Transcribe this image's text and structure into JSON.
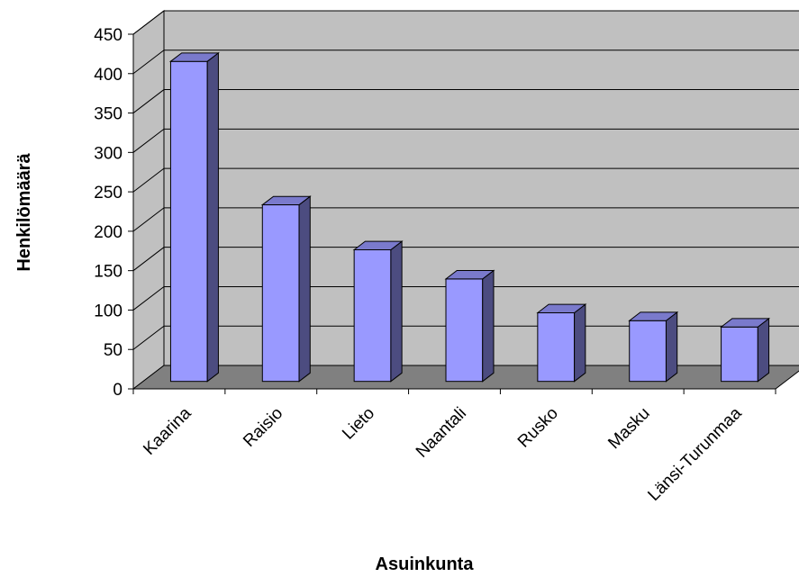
{
  "chart_data": {
    "type": "bar",
    "title": "",
    "xlabel": "Asuinkunta",
    "ylabel": "Henkilömäärä",
    "ylim": [
      0,
      450
    ],
    "yticks": [
      0,
      50,
      100,
      150,
      200,
      250,
      300,
      350,
      400,
      450
    ],
    "categories": [
      "Kaarina",
      "Raisio",
      "Lieto",
      "Naantali",
      "Rusko",
      "Masku",
      "Länsi-Turunmaa"
    ],
    "values": [
      406,
      224,
      167,
      130,
      87,
      77,
      69
    ],
    "grid": true,
    "legend": "none",
    "style": "3d-column",
    "colors": {
      "bar_front": "#9999ff",
      "bar_side": "#4c4c80",
      "bar_top": "#7a7acc",
      "wall": "#c0c0c0",
      "floor": "#808080",
      "gridline": "#000000"
    }
  }
}
